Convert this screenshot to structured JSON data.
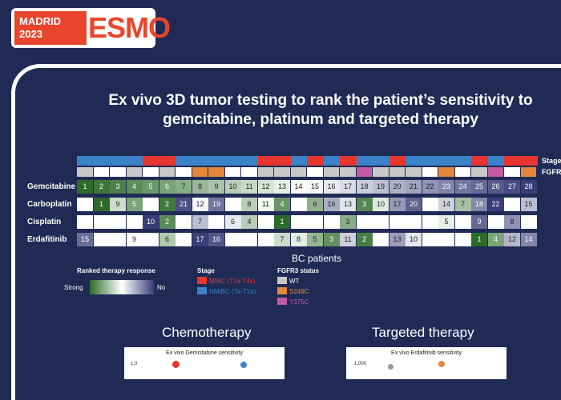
{
  "logo": {
    "city": "MADRID",
    "year": "2023",
    "word": "ESMO"
  },
  "title_line1": "Ex vivo 3D tumor testing to rank the patient’s sensitivity to",
  "title_line2": "gemcitabine, platinum and targeted therapy",
  "side_labels": {
    "stage": "Stage",
    "fgfr": "FGFR"
  },
  "colors": {
    "mibc": "#e8352d",
    "nmibc": "#3b82c8",
    "wt": "#c8c8c8",
    "s249c": "#e4873c",
    "y375c": "#c25aa6"
  },
  "stage": [
    "nmibc",
    "nmibc",
    "nmibc",
    "nmibc",
    "mibc",
    "mibc",
    "nmibc",
    "nmibc",
    "nmibc",
    "nmibc",
    "nmibc",
    "mibc",
    "mibc",
    "nmibc",
    "mibc",
    "nmibc",
    "mibc",
    "nmibc",
    "nmibc",
    "mibc",
    "nmibc",
    "nmibc",
    "nmibc",
    "nmibc",
    "mibc",
    "nmibc",
    "mibc",
    "mibc"
  ],
  "fgfr3": [
    "wt",
    "none",
    "none",
    "wt",
    "none",
    "wt",
    "none",
    "s249c",
    "s249c",
    "none",
    "none",
    "wt",
    "wt",
    "wt",
    "none",
    "wt",
    "wt",
    "y375c",
    "wt",
    "wt",
    "wt",
    "none",
    "s249c",
    "none",
    "wt",
    "y375c",
    "none",
    "s249c"
  ],
  "rows": [
    {
      "label": "Gemcitabine",
      "ranks": [
        1,
        2,
        3,
        4,
        5,
        6,
        7,
        8,
        9,
        10,
        11,
        12,
        13,
        14,
        15,
        16,
        17,
        18,
        19,
        20,
        21,
        22,
        23,
        24,
        25,
        26,
        27,
        28
      ]
    },
    {
      "label": "Carboplatin",
      "ranks": [
        null,
        1,
        9,
        5,
        null,
        2,
        21,
        12,
        19,
        null,
        8,
        11,
        4,
        null,
        6,
        16,
        13,
        3,
        10,
        17,
        20,
        null,
        14,
        7,
        18,
        22,
        null,
        15
      ]
    },
    {
      "label": "Cisplatin",
      "ranks": [
        null,
        null,
        null,
        null,
        10,
        2,
        null,
        7,
        null,
        6,
        4,
        null,
        1,
        null,
        null,
        null,
        3,
        null,
        null,
        null,
        null,
        null,
        5,
        null,
        9,
        null,
        8,
        null
      ]
    },
    {
      "label": "Erdafitinib",
      "ranks": [
        15,
        null,
        null,
        9,
        null,
        6,
        null,
        17,
        16,
        null,
        null,
        null,
        7,
        8,
        5,
        3,
        11,
        2,
        null,
        13,
        10,
        null,
        null,
        null,
        1,
        4,
        12,
        14
      ]
    }
  ],
  "bc_patients": "BC patients",
  "legend": {
    "response_title": "Ranked therapy response",
    "strong": "Strong",
    "no": "No",
    "stage_title": "Stage",
    "mibc": "MIBC (T2a-T4x)",
    "nmibc": "NMIBC (Ta-T1b)",
    "fgfr_title": "FGFR3 status",
    "wt": "WT",
    "s249c": "S249C",
    "y375c": "Y375C"
  },
  "sections": {
    "chemo": "Chemotherapy",
    "targeted": "Targeted therapy",
    "gem_plot_title": "Ex vivo Gemcitabine sensitivity",
    "gem_tick": "1,0",
    "erda_plot_title": "Ex vivo Erdafitinib sensitivity",
    "erda_tick": "1,000"
  }
}
